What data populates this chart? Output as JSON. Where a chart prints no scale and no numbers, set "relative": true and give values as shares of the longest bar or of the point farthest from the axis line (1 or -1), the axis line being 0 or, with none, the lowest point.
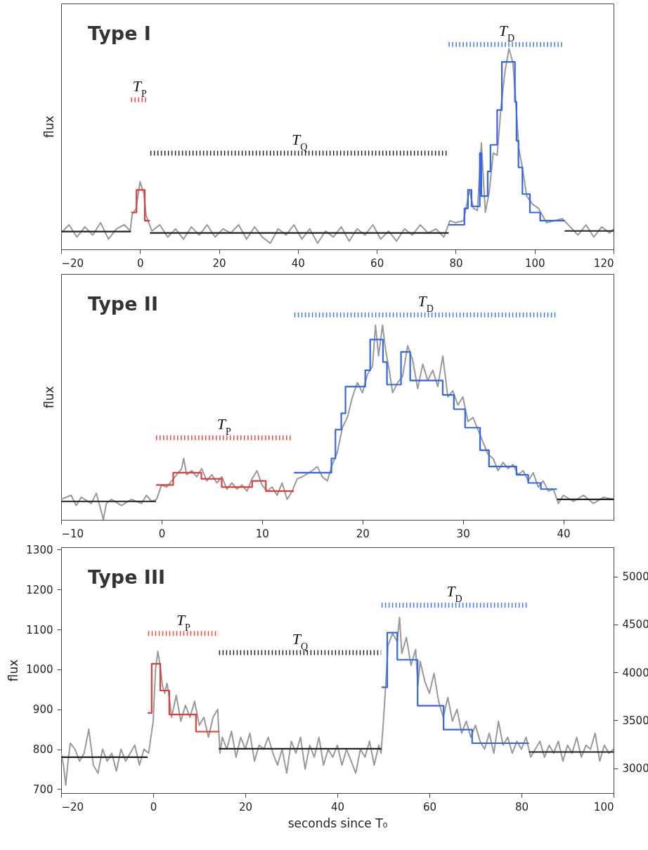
{
  "chart_data": [
    {
      "type": "line",
      "title": "Type I",
      "ylabel": "flux",
      "relative": true,
      "tick_labels": "x",
      "xlim": [
        -20,
        120
      ],
      "xticks": [
        -20,
        0,
        20,
        40,
        60,
        80,
        100,
        120
      ],
      "series": [
        {
          "type": "line",
          "color": "#999999",
          "x": [
            -20,
            -18,
            -16,
            -14,
            -12,
            -10,
            -8,
            -6,
            -4,
            -2.5,
            -2,
            -1,
            0,
            0.5,
            1,
            1.5,
            2,
            3,
            5,
            7,
            9,
            11,
            13,
            15,
            17,
            19,
            21,
            23,
            25,
            27,
            29,
            31,
            33,
            35,
            37,
            39,
            41,
            43,
            45,
            47,
            49,
            51,
            53,
            55,
            57,
            59,
            61,
            63,
            65,
            67,
            69,
            71,
            73,
            75,
            77,
            78.5,
            80,
            82,
            83.5,
            84.5,
            85.5,
            86.5,
            87.5,
            88.5,
            89.5,
            90.5,
            91.5,
            92.5,
            93.5,
            94.5,
            95.3,
            96,
            96.8,
            98,
            99.5,
            101,
            103,
            105,
            107,
            109,
            111,
            113,
            115,
            117,
            119,
            120
          ],
          "values": [
            0.08,
            0.12,
            0.06,
            0.11,
            0.07,
            0.13,
            0.05,
            0.1,
            0.12,
            0.09,
            0.17,
            0.2,
            0.33,
            0.3,
            0.27,
            0.17,
            0.14,
            0.09,
            0.12,
            0.06,
            0.1,
            0.05,
            0.11,
            0.07,
            0.12,
            0.06,
            0.1,
            0.08,
            0.12,
            0.05,
            0.11,
            0.06,
            0.03,
            0.1,
            0.07,
            0.12,
            0.05,
            0.1,
            0.03,
            0.09,
            0.06,
            0.11,
            0.04,
            0.1,
            0.07,
            0.12,
            0.05,
            0.09,
            0.04,
            0.1,
            0.07,
            0.12,
            0.08,
            0.1,
            0.06,
            0.14,
            0.13,
            0.14,
            0.29,
            0.2,
            0.19,
            0.52,
            0.18,
            0.28,
            0.47,
            0.46,
            0.7,
            0.87,
            0.98,
            0.91,
            0.7,
            0.49,
            0.41,
            0.26,
            0.22,
            0.2,
            0.13,
            0.14,
            0.15,
            0.11,
            0.07,
            0.12,
            0.06,
            0.11,
            0.08,
            0.1
          ]
        },
        {
          "type": "step",
          "color": "#222222",
          "x": [
            -20,
            -2.3
          ],
          "values": [
            0.087,
            0.087
          ]
        },
        {
          "type": "step",
          "color": "#e03c3c",
          "x": [
            -2.3,
            -0.9,
            1.2,
            2.5
          ],
          "values": [
            0.18,
            0.29,
            0.14,
            0.14
          ]
        },
        {
          "type": "step",
          "color": "#222222",
          "x": [
            2.5,
            78.2
          ],
          "values": [
            0.08,
            0.08
          ]
        },
        {
          "type": "step",
          "color": "#3366e6",
          "x": [
            78.2,
            82.2,
            83.1,
            84,
            86.1,
            86.5,
            88.1,
            88.8,
            90.5,
            91.7,
            95,
            95.4,
            95.9,
            96.9,
            98.8,
            101.4,
            107.6
          ],
          "values": [
            0.12,
            0.2,
            0.29,
            0.21,
            0.47,
            0.26,
            0.38,
            0.51,
            0.68,
            0.915,
            0.72,
            0.53,
            0.4,
            0.27,
            0.18,
            0.14,
            0.14
          ]
        },
        {
          "type": "step",
          "color": "#222222",
          "x": [
            107.6,
            120
          ],
          "values": [
            0.09,
            0.09
          ]
        },
        {
          "type": "line",
          "name": "T$_{P}$",
          "color": "#f04848",
          "line_style": "dotted",
          "x": [
            -2.3,
            2.1
          ],
          "values": [
            0.73,
            0.73
          ]
        },
        {
          "type": "line",
          "name": "T$_{Q}$",
          "color": "#222222",
          "line_style": "dotted",
          "x": [
            2.6,
            78.2
          ],
          "values": [
            0.47,
            0.47
          ]
        },
        {
          "type": "line",
          "name": "T$_{D}$",
          "color": "#4477ee",
          "line_style": "dotted",
          "x": [
            78.2,
            107.6
          ],
          "values": [
            1,
            1
          ]
        }
      ]
    },
    {
      "type": "line",
      "title": "Type II",
      "ylabel": "flux",
      "relative": true,
      "tick_labels": "x",
      "xlim": [
        -10,
        45
      ],
      "xticks": [
        -10,
        0,
        10,
        20,
        30,
        40
      ],
      "series": [
        {
          "type": "line",
          "color": "#999999",
          "x": [
            -10,
            -9,
            -8.5,
            -8,
            -7,
            -6.5,
            -6,
            -5.8,
            -5.5,
            -5,
            -4,
            -3,
            -2,
            -1.5,
            -1,
            -0.5,
            0,
            0.5,
            1,
            1.5,
            2,
            2.2,
            2.5,
            3,
            3.5,
            4,
            4.5,
            5,
            5.5,
            6,
            6.5,
            7,
            7.5,
            8,
            8.5,
            9,
            9.5,
            10,
            10.5,
            11,
            11.5,
            12,
            12.5,
            13,
            13.5,
            14,
            15,
            15.5,
            16,
            16.5,
            17,
            17.5,
            18,
            18.5,
            19,
            19.5,
            20,
            20.5,
            21,
            21.3,
            21.6,
            22,
            22.3,
            22.7,
            23,
            23.5,
            24,
            24.5,
            25,
            25.5,
            26,
            26.5,
            27,
            27.5,
            28,
            28.5,
            29,
            29.5,
            30,
            30.5,
            31,
            31.5,
            32,
            32.5,
            33,
            33.5,
            34,
            34.5,
            35,
            35.5,
            36,
            36.5,
            37,
            37.5,
            38,
            38.5,
            39,
            39.5,
            40,
            41,
            42,
            43,
            44,
            45
          ],
          "values": [
            0.1,
            0.12,
            0.07,
            0.11,
            0.08,
            0.13,
            0.04,
            0.0,
            0.08,
            0.1,
            0.07,
            0.1,
            0.08,
            0.12,
            0.09,
            0.1,
            0.17,
            0.16,
            0.19,
            0.22,
            0.25,
            0.3,
            0.22,
            0.24,
            0.21,
            0.25,
            0.19,
            0.22,
            0.18,
            0.21,
            0.15,
            0.18,
            0.15,
            0.17,
            0.14,
            0.2,
            0.24,
            0.17,
            0.14,
            0.16,
            0.12,
            0.18,
            0.1,
            0.14,
            0.2,
            0.21,
            0.24,
            0.26,
            0.21,
            0.19,
            0.27,
            0.33,
            0.45,
            0.5,
            0.6,
            0.67,
            0.62,
            0.71,
            0.75,
            0.95,
            0.8,
            0.95,
            0.83,
            0.72,
            0.62,
            0.67,
            0.7,
            0.85,
            0.78,
            0.64,
            0.76,
            0.68,
            0.73,
            0.65,
            0.8,
            0.6,
            0.63,
            0.56,
            0.6,
            0.48,
            0.5,
            0.44,
            0.38,
            0.32,
            0.3,
            0.24,
            0.28,
            0.25,
            0.27,
            0.22,
            0.24,
            0.19,
            0.23,
            0.16,
            0.19,
            0.14,
            0.15,
            0.08,
            0.12,
            0.09,
            0.12,
            0.08,
            0.11,
            0.1
          ]
        },
        {
          "type": "step",
          "color": "#222222",
          "x": [
            -10,
            -0.55
          ],
          "values": [
            0.09,
            0.09
          ]
        },
        {
          "type": "step",
          "color": "#e03c3c",
          "x": [
            -0.55,
            1.16,
            3.96,
            5.99,
            9.02,
            10.38,
            13.18
          ],
          "values": [
            0.17,
            0.23,
            0.2,
            0.16,
            0.19,
            0.14,
            0.14
          ]
        },
        {
          "type": "step",
          "color": "#3366e6",
          "x": [
            13.18,
            16.91,
            17.31,
            17.89,
            18.31,
            20.28,
            20.77,
            22.04,
            22.44,
            23.84,
            24.75,
            27.99,
            29.1,
            30.22,
            31.71,
            32.6,
            35.33,
            36.5,
            37.76,
            39.37
          ],
          "values": [
            0.23,
            0.3,
            0.44,
            0.52,
            0.65,
            0.73,
            0.88,
            0.77,
            0.66,
            0.82,
            0.68,
            0.61,
            0.54,
            0.45,
            0.34,
            0.26,
            0.22,
            0.18,
            0.15,
            0.15
          ]
        },
        {
          "type": "step",
          "color": "#222222",
          "x": [
            39.37,
            45
          ],
          "values": [
            0.1,
            0.1
          ]
        },
        {
          "type": "line",
          "name": "T$_{P}$",
          "color": "#f04848",
          "line_style": "dotted",
          "x": [
            -0.55,
            13
          ],
          "values": [
            0.4,
            0.4
          ]
        },
        {
          "type": "line",
          "name": "T$_{D}$",
          "color": "#4477ee",
          "line_style": "dotted",
          "x": [
            13.22,
            39.37
          ],
          "values": [
            1,
            1
          ]
        }
      ]
    },
    {
      "type": "line",
      "title": "Type III",
      "xlabel": "seconds since T₀",
      "ylabel": "flux",
      "xlim": [
        -20,
        100
      ],
      "xticks": [
        -20,
        0,
        20,
        40,
        60,
        80,
        100
      ],
      "ylim": [
        690,
        1306
      ],
      "yticks": [
        700,
        800,
        900,
        1000,
        1100,
        1200,
        1300
      ],
      "y2lim": [
        2740,
        5305
      ],
      "y2ticks": [
        3000,
        3500,
        4000,
        4500,
        5000
      ],
      "series": [
        {
          "type": "line",
          "color": "#999999",
          "x": [
            -20,
            -19.5,
            -19,
            -18.5,
            -18,
            -17,
            -16,
            -15,
            -14,
            -13,
            -12,
            -11,
            -10,
            -9,
            -8,
            -7,
            -6,
            -5,
            -4,
            -3,
            -2,
            -1,
            0,
            0.5,
            1,
            1.5,
            2,
            2.5,
            3,
            3.5,
            4,
            5,
            6,
            7,
            8,
            9,
            10,
            11,
            12,
            13,
            14,
            14.5,
            15,
            16,
            17,
            18,
            19,
            20,
            21,
            22,
            23,
            24,
            25,
            26,
            27,
            28,
            29,
            30,
            31,
            32,
            33,
            34,
            35,
            36,
            37,
            38,
            39,
            40,
            41,
            42,
            43,
            44,
            45,
            46,
            47,
            48,
            49,
            49.5,
            50,
            50.5,
            51,
            52,
            53,
            53.5,
            54,
            55,
            56,
            57,
            57.5,
            58,
            59,
            60,
            61,
            62,
            63,
            64,
            65,
            66,
            67,
            68,
            69,
            70,
            71,
            72,
            73,
            74,
            75,
            76,
            77,
            78,
            79,
            80,
            81,
            82,
            83,
            84,
            85,
            86,
            87,
            88,
            89,
            90,
            91,
            92,
            93,
            94,
            95,
            96,
            97,
            98,
            99,
            100
          ],
          "values": [
            790,
            760,
            710,
            770,
            815,
            800,
            770,
            790,
            850,
            760,
            740,
            800,
            770,
            790,
            745,
            800,
            770,
            790,
            810,
            760,
            800,
            790,
            870,
            1000,
            1045,
            1010,
            960,
            940,
            965,
            930,
            880,
            935,
            870,
            910,
            880,
            920,
            860,
            880,
            830,
            880,
            900,
            790,
            830,
            800,
            845,
            780,
            830,
            800,
            840,
            770,
            810,
            800,
            830,
            790,
            760,
            800,
            740,
            820,
            790,
            830,
            750,
            810,
            780,
            830,
            760,
            800,
            780,
            810,
            760,
            800,
            770,
            740,
            800,
            780,
            820,
            760,
            810,
            790,
            870,
            960,
            1060,
            1090,
            1070,
            1130,
            1040,
            1080,
            1010,
            1050,
            960,
            1020,
            970,
            940,
            990,
            920,
            880,
            930,
            870,
            900,
            840,
            870,
            830,
            860,
            820,
            800,
            840,
            790,
            870,
            810,
            830,
            790,
            820,
            800,
            830,
            780,
            800,
            820,
            780,
            810,
            790,
            820,
            770,
            810,
            790,
            830,
            780,
            810,
            800,
            840,
            770,
            810,
            790,
            800
          ]
        },
        {
          "type": "step",
          "color": "#222222",
          "x": [
            -20,
            -1.2
          ],
          "values": [
            780,
            780
          ]
        },
        {
          "type": "step",
          "color": "#e03c3c",
          "x": [
            -1.2,
            -0.33,
            1.54,
            3.48,
            9.3,
            14.25
          ],
          "values": [
            891,
            1014,
            947,
            887,
            844,
            844
          ]
        },
        {
          "type": "step",
          "color": "#222222",
          "x": [
            14.25,
            49.6
          ],
          "values": [
            801,
            801
          ]
        },
        {
          "type": "step",
          "color": "#3366e6",
          "x": [
            49.6,
            50.84,
            53.02,
            57.44,
            63.08,
            69.28,
            81.63
          ],
          "values": [
            955,
            1092,
            1024,
            909,
            849,
            815,
            815
          ]
        },
        {
          "type": "step",
          "color": "#222222",
          "x": [
            81.63,
            100
          ],
          "values": [
            793,
            793
          ]
        },
        {
          "type": "line",
          "name": "T$_{P}$",
          "color": "#f04848",
          "line_style": "dotted",
          "x": [
            -1.1,
            14.2
          ],
          "values": [
            1090,
            1090
          ]
        },
        {
          "type": "line",
          "name": "T$_{Q}$",
          "color": "#222222",
          "line_style": "dotted",
          "x": [
            14.3,
            49.5
          ],
          "values": [
            1042,
            1042
          ]
        },
        {
          "type": "line",
          "name": "T$_{D}$",
          "color": "#4477ee",
          "line_style": "dotted",
          "x": [
            49.6,
            81.2
          ],
          "values": [
            1161,
            1161
          ]
        }
      ]
    }
  ]
}
